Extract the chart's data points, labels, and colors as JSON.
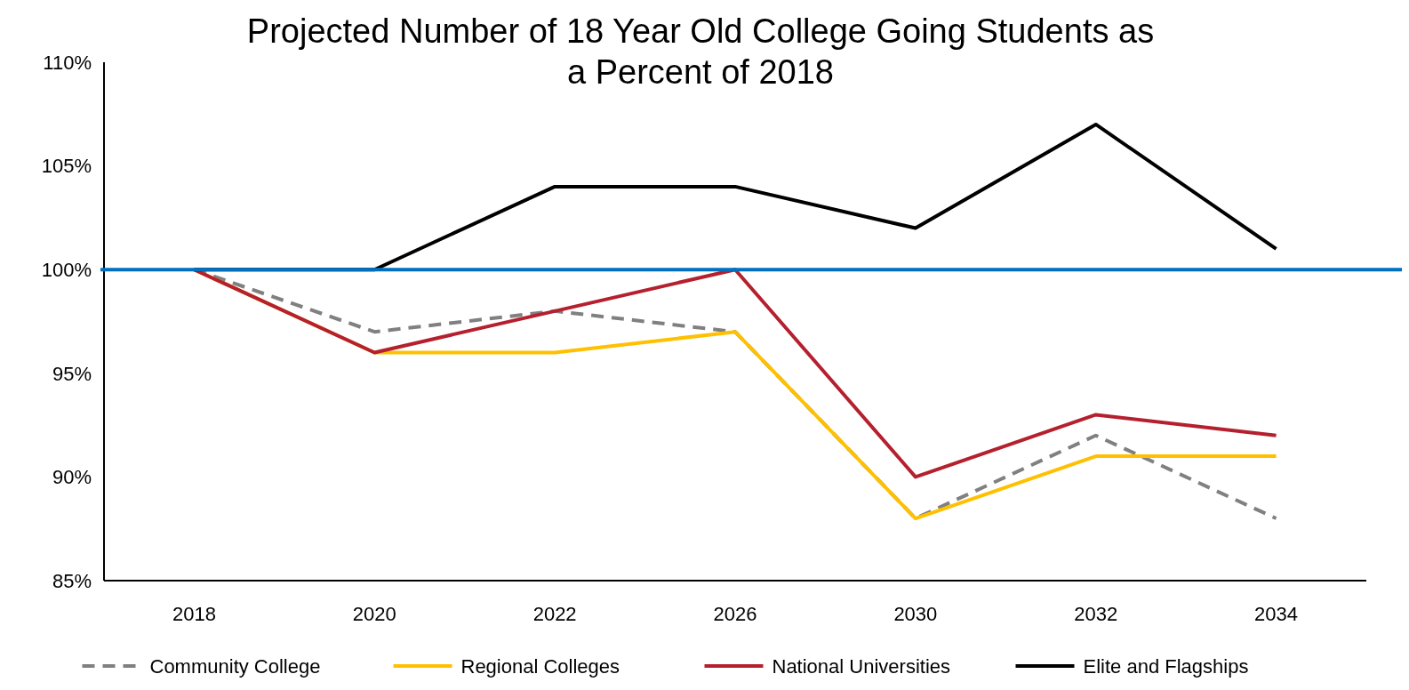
{
  "chart_data": {
    "type": "line",
    "title": "Projected Number of 18 Year Old College Going Students as a Percent of 2018",
    "categories": [
      "2018",
      "2020",
      "2022",
      "2026",
      "2030",
      "2032",
      "2034"
    ],
    "series": [
      {
        "name": "Community College",
        "color": "#808080",
        "line_style": "dashed",
        "values": [
          100,
          97,
          98,
          97,
          88,
          92,
          88
        ]
      },
      {
        "name": "Regional Colleges",
        "color": "#ffc000",
        "values": [
          100,
          96,
          96,
          97,
          88,
          91,
          91
        ]
      },
      {
        "name": "National Universities",
        "color": "#b5202e",
        "values": [
          100,
          96,
          98,
          100,
          90,
          93,
          92
        ]
      },
      {
        "name": "Elite and Flagships",
        "color": "#000000",
        "values": [
          100,
          100,
          104,
          104,
          102,
          107,
          101
        ]
      }
    ],
    "ylim": [
      85,
      110
    ],
    "yticks": [
      {
        "value": 85,
        "label": "85%"
      },
      {
        "value": 90,
        "label": "90%"
      },
      {
        "value": 95,
        "label": "95%"
      },
      {
        "value": 100,
        "label": "100%"
      },
      {
        "value": 105,
        "label": "105%"
      },
      {
        "value": 110,
        "label": "110%"
      }
    ],
    "ref_lines": [
      {
        "axis": "y",
        "value": 100,
        "color": "#0070c0"
      }
    ],
    "grid": false,
    "legend": "bottom",
    "marker": "none"
  }
}
